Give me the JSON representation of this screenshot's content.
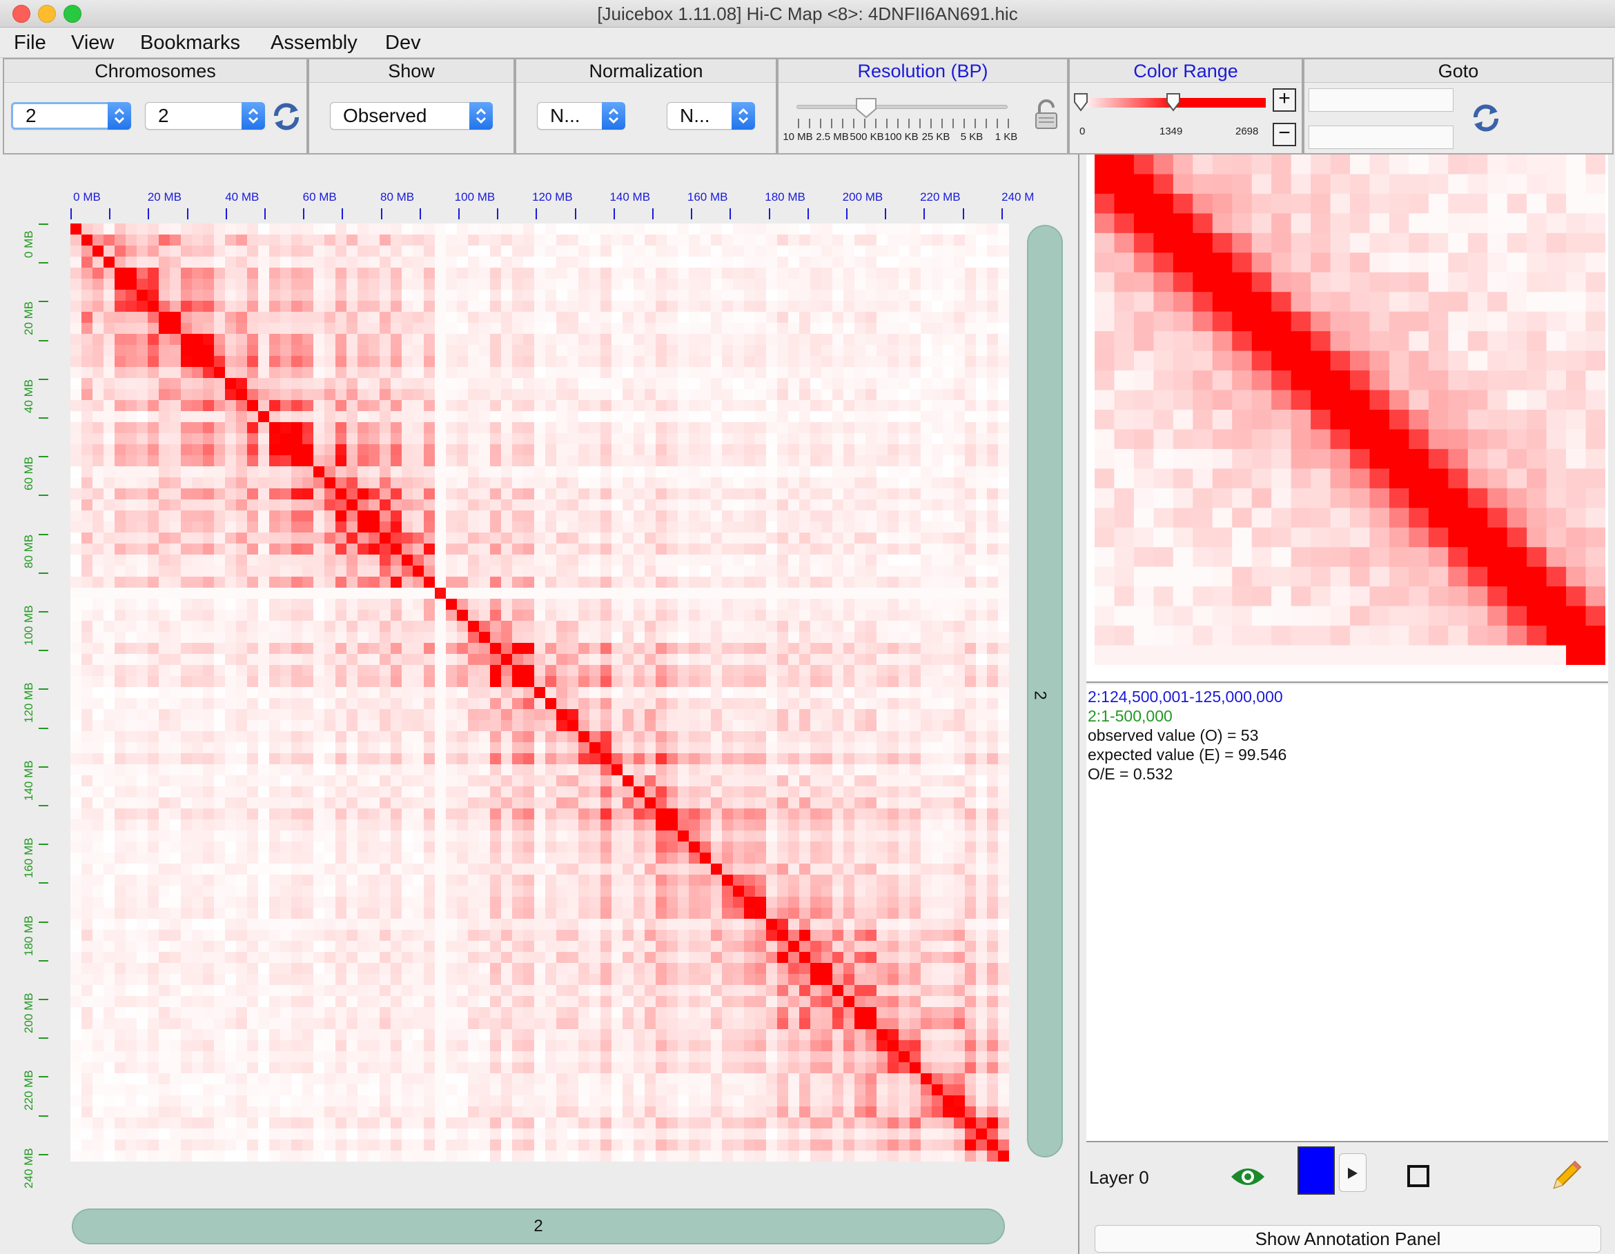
{
  "window": {
    "title": "[Juicebox 1.11.08] Hi-C Map <8>: 4DNFII6AN691.hic"
  },
  "menu": [
    "File",
    "View",
    "Bookmarks",
    "Assembly",
    "Dev"
  ],
  "toolbar": {
    "chromosomes": {
      "label": "Chromosomes",
      "x_value": "2",
      "y_value": "2"
    },
    "show": {
      "label": "Show",
      "value": "Observed"
    },
    "normalization": {
      "label": "Normalization",
      "value1": "N...",
      "value2": "N..."
    },
    "resolution": {
      "label": "Resolution (BP)",
      "ticks": [
        "10 MB",
        "2.5 MB",
        "500 KB",
        "100 KB",
        "25 KB",
        "5 KB",
        "1 KB"
      ],
      "selected": "500 KB"
    },
    "color_range": {
      "label": "Color Range",
      "min": "0",
      "mid": "1349",
      "max": "2698",
      "plus": "+",
      "minus": "−",
      "lower_level": 0.0,
      "upper_level": 0.5
    },
    "goto": {
      "label": "Goto",
      "field1": "",
      "field2": ""
    }
  },
  "map": {
    "x_axis_labels": [
      "0 MB",
      "20 MB",
      "40 MB",
      "60 MB",
      "80 MB",
      "100 MB",
      "120 MB",
      "140 MB",
      "160 MB",
      "180 MB",
      "200 MB",
      "220 MB",
      "240 M"
    ],
    "y_axis_labels": [
      "0 MB",
      "20 MB",
      "40 MB",
      "60 MB",
      "80 MB",
      "100 MB",
      "120 MB",
      "140 MB",
      "160 MB",
      "180 MB",
      "200 MB",
      "220 MB",
      "240 MB"
    ],
    "x_chrom": "2",
    "y_chrom": "2",
    "color": "#ff0000"
  },
  "hover": {
    "x_locus": "2:124,500,001-125,000,000",
    "y_locus": "2:1-500,000",
    "observed": "observed value (O) = 53",
    "expected": "expected value (E) = 99.546",
    "oe": "O/E = 0.532"
  },
  "layer": {
    "name": "Layer 0",
    "color": "#0000ff"
  },
  "annotation_button": "Show Annotation Panel",
  "icons": [
    "sync-icon",
    "lock-icon",
    "eye-icon",
    "play-icon",
    "square-icon",
    "pencil-icon"
  ]
}
